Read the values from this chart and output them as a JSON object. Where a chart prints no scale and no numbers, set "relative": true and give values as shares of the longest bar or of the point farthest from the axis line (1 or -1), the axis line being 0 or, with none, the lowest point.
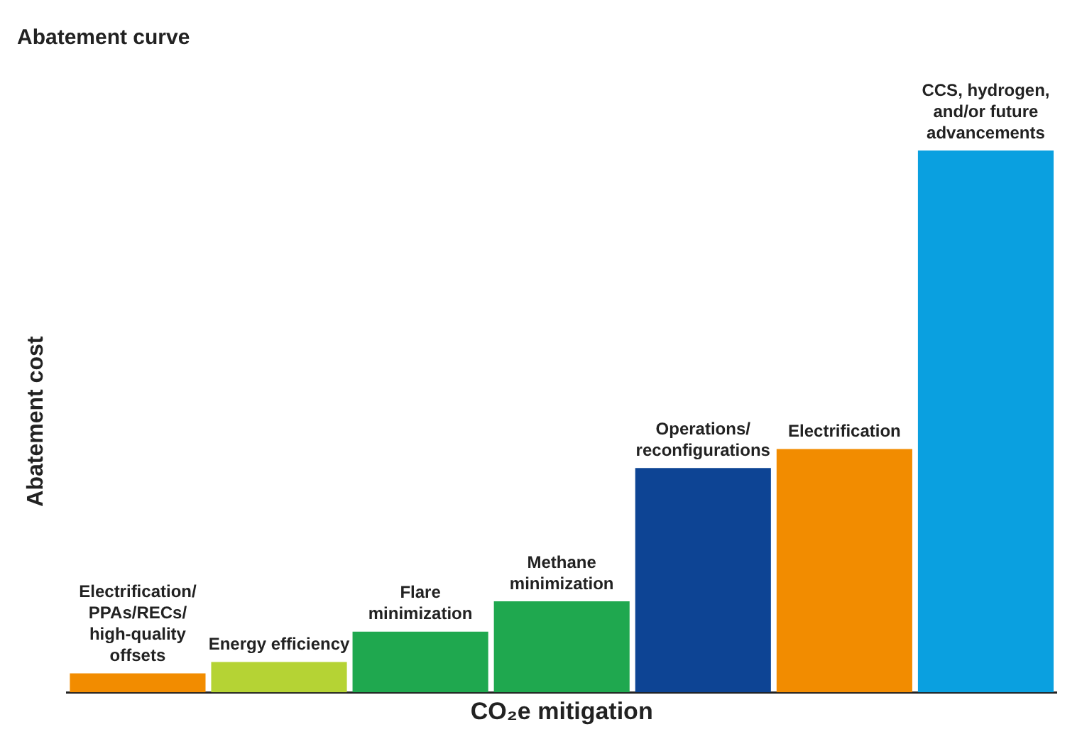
{
  "chart_data": {
    "type": "bar",
    "title": "Abatement curve",
    "xlabel": "CO₂e mitigation",
    "ylabel": "Abatement cost",
    "relative": true,
    "legend": false,
    "grid": false,
    "categories": [
      "Electrification/ PPAs/RECs/ high-quality offsets",
      "Energy efficiency",
      "Flare minimization",
      "Methane minimization",
      "Operations/ reconfigurations",
      "Electrification",
      "CCS, hydrogen, and/or future advancements"
    ],
    "values": [
      0.035,
      0.056,
      0.112,
      0.168,
      0.414,
      0.449,
      1
    ],
    "colors": [
      "#f28c00",
      "#b5d334",
      "#1fa84f",
      "#1fa84f",
      "#0d4494",
      "#f28c00",
      "#0aa0e0"
    ]
  }
}
